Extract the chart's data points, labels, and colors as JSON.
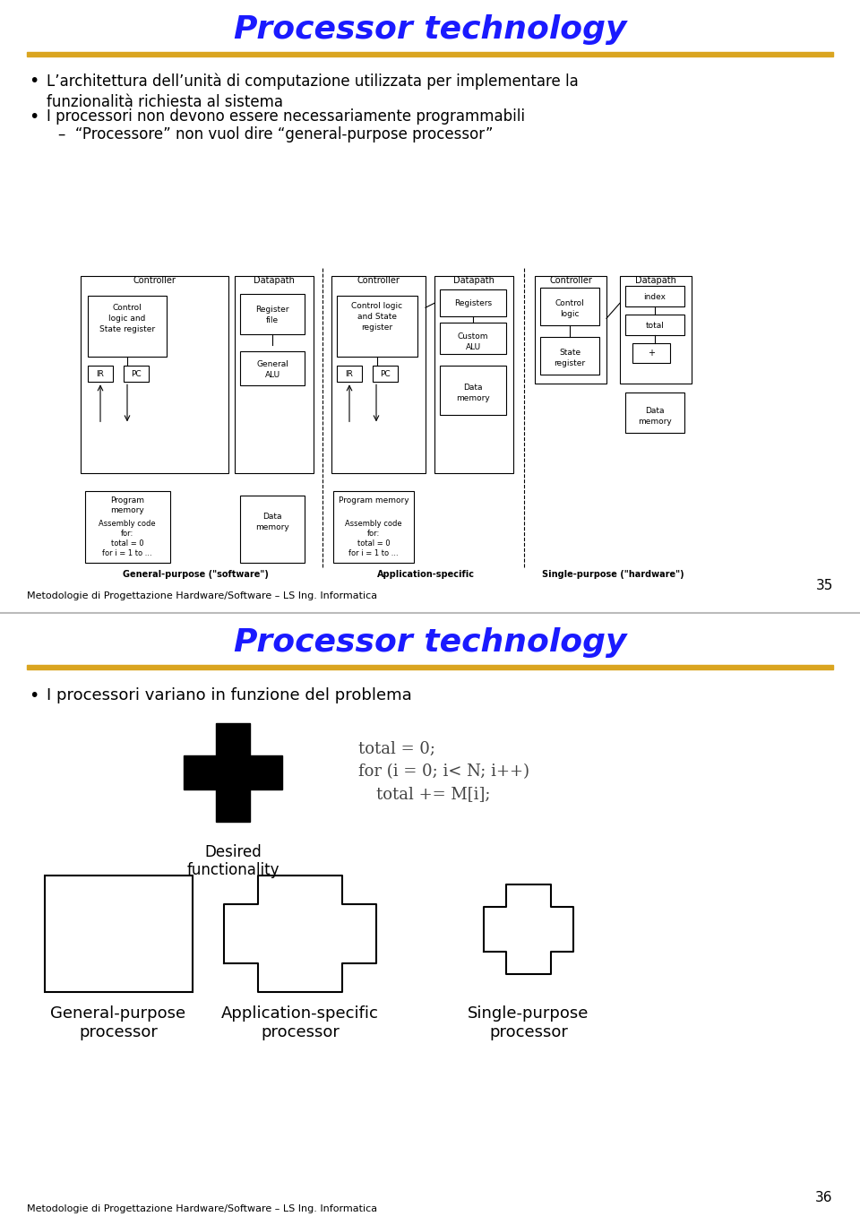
{
  "slide1": {
    "title": "Processor technology",
    "title_color": "#1a1aff",
    "line_color": "#DAA520",
    "bullets": [
      "L’architettura dell’unità di computazione utilizzata per implementare la\nfunzionalità richiesta al sistema",
      "I processori non devono essere necessariamente programmabili"
    ],
    "sub_bullet": "–  “Processore” non vuol dire “general-purpose processor”",
    "page_num": "35",
    "footer": "Metodologie di Progettazione Hardware/Software – LS Ing. Informatica"
  },
  "slide2": {
    "title": "Processor technology",
    "title_color": "#1a1aff",
    "line_color": "#DAA520",
    "bullet": "I processori variano in funzione del problema",
    "code_line1": "total = 0;",
    "code_line2": "for (i = 0; i< N; i++)",
    "code_line3": "    total += M[i];",
    "desired_label": "Desired\nfunctionality",
    "labels": [
      "General-purpose\nprocessor",
      "Application-specific\nprocessor",
      "Single-purpose\nprocessor"
    ],
    "page_num": "36",
    "footer": "Metodologie di Progettazione Hardware/Software – LS Ing. Informatica"
  }
}
